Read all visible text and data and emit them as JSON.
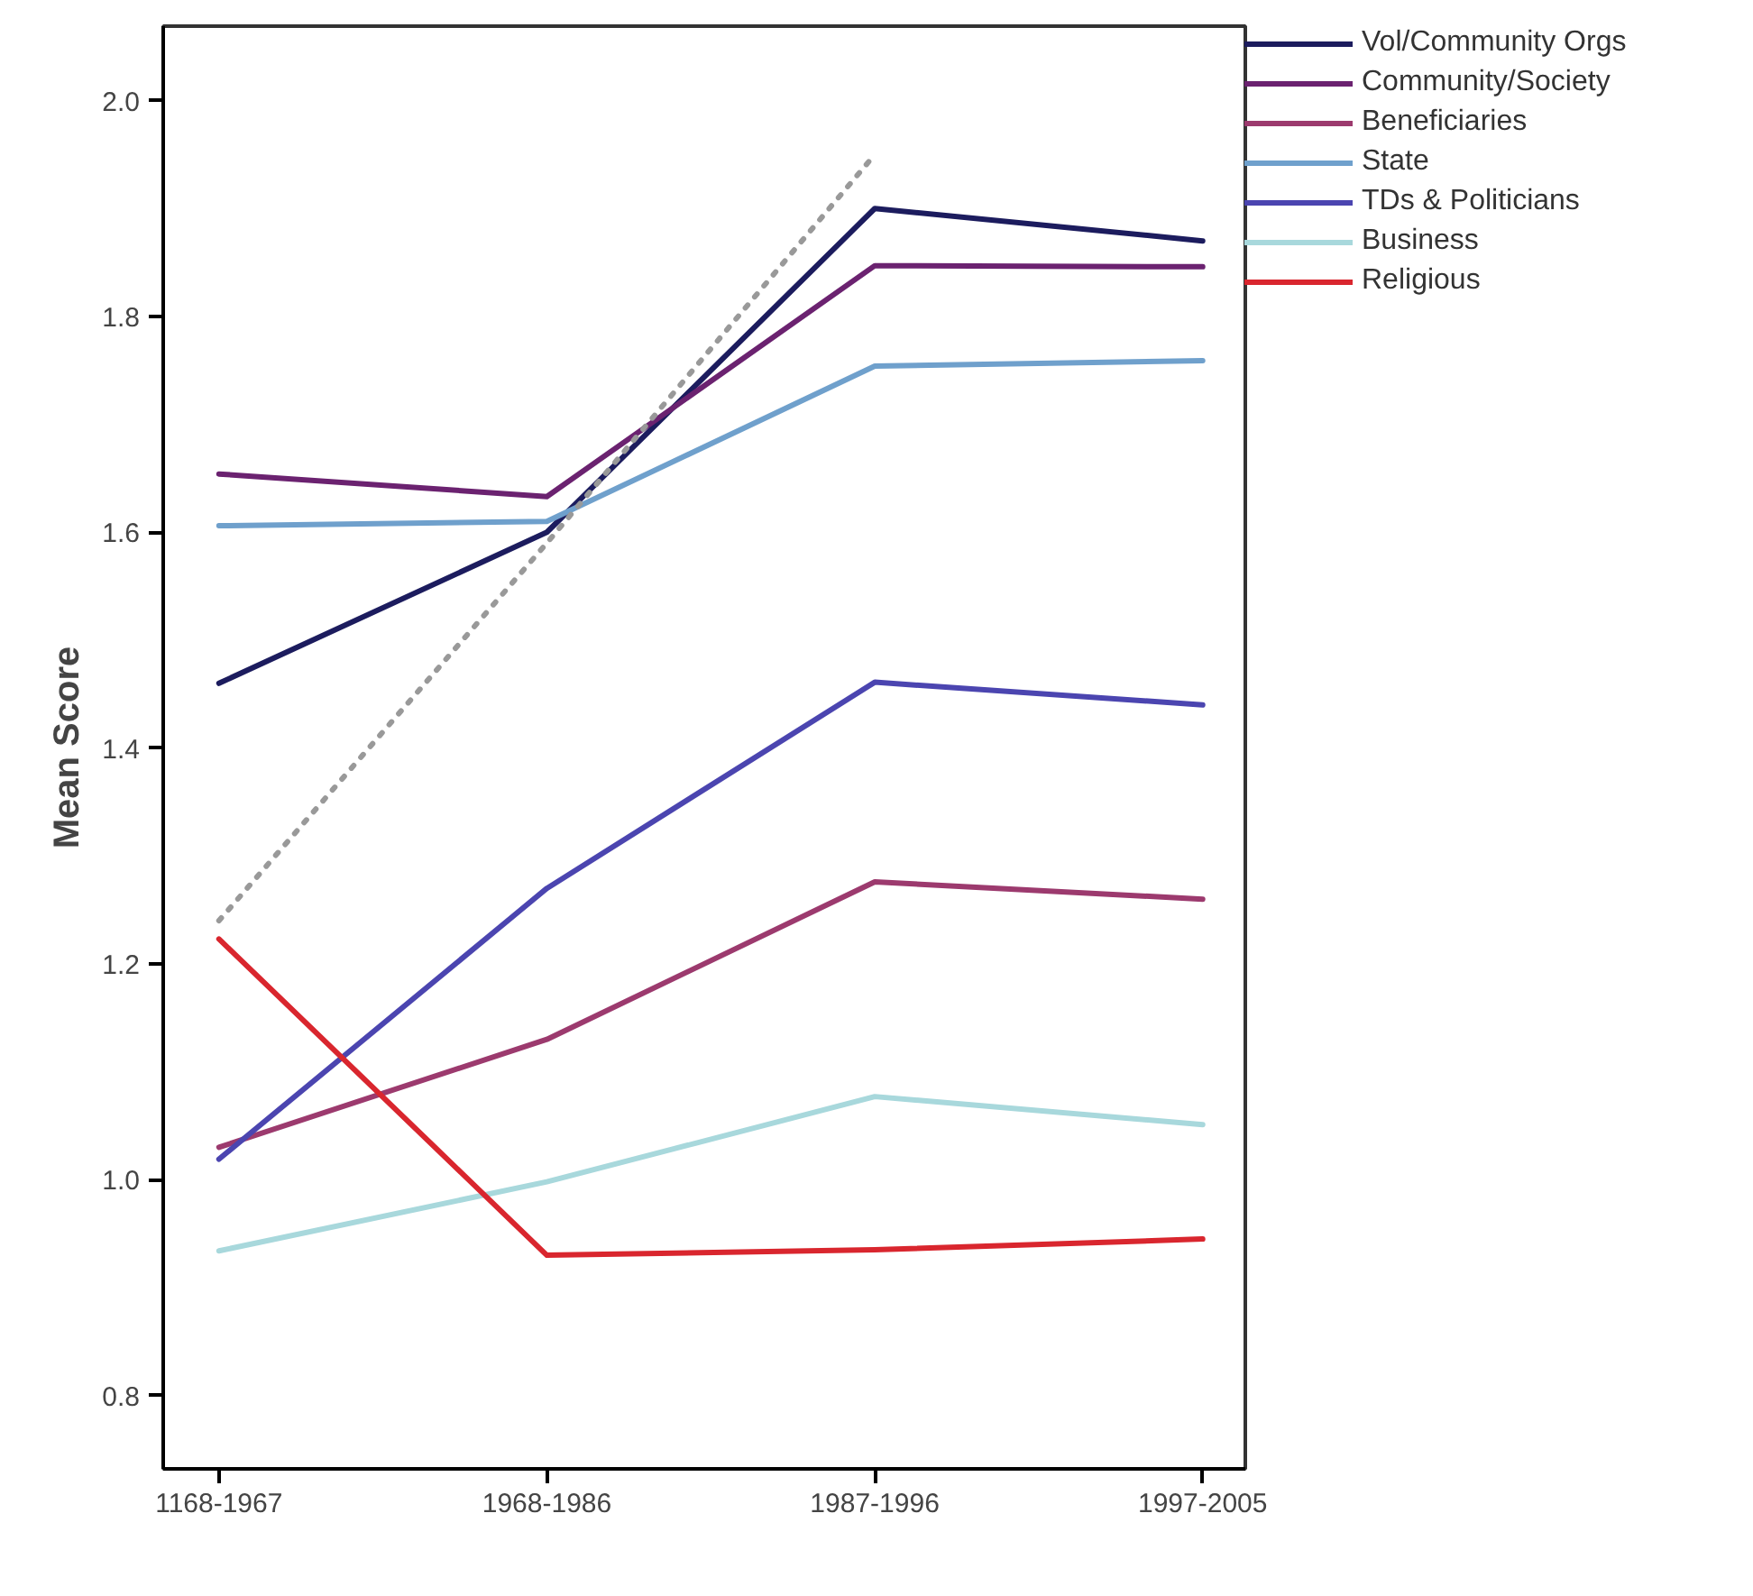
{
  "chart_data": {
    "type": "line",
    "ylabel": "Mean Score",
    "categories": [
      "1168-1967",
      "1968-1986",
      "1987-1996",
      "1997-2005"
    ],
    "ylim": [
      0.732,
      2.069
    ],
    "yticks": [
      {
        "value": 0.8,
        "label": "0.8"
      },
      {
        "value": 1.0,
        "label": "1.0"
      },
      {
        "value": 1.2,
        "label": "1.2"
      },
      {
        "value": 1.4,
        "label": "1.4"
      },
      {
        "value": 1.6,
        "label": "1.6"
      },
      {
        "value": 1.8,
        "label": "1.8"
      },
      {
        "value": 2.0,
        "label": "2.0"
      }
    ],
    "grid": false,
    "legend": "top right",
    "line_style": "solid",
    "series": [
      {
        "name": "Vol/Community Orgs",
        "color": "#1c1c5e",
        "values": [
          1.46,
          1.6,
          1.9,
          1.87
        ]
      },
      {
        "name": "Community/Society",
        "color": "#6b2270",
        "values": [
          1.654,
          1.633,
          1.847,
          1.846
        ]
      },
      {
        "name": "Beneficiaries",
        "color": "#9c3a6e",
        "values": [
          1.03,
          1.13,
          1.276,
          1.26
        ]
      },
      {
        "name": "State",
        "color": "#6fa0cc",
        "values": [
          1.606,
          1.61,
          1.754,
          1.759
        ]
      },
      {
        "name": "TDs & Politicians",
        "color": "#4b45b0",
        "values": [
          1.019,
          1.27,
          1.461,
          1.44
        ]
      },
      {
        "name": "Business",
        "color": "#a8d8dc",
        "values": [
          0.934,
          0.998,
          1.077,
          1.051
        ]
      },
      {
        "name": "Religious",
        "color": "#d9262e",
        "values": [
          1.223,
          0.93,
          0.935,
          0.945
        ]
      },
      {
        "type": "line",
        "line_style": "dotted",
        "color": "#999999",
        "values": [
          1.24,
          1.59,
          1.95,
          null
        ]
      }
    ]
  }
}
